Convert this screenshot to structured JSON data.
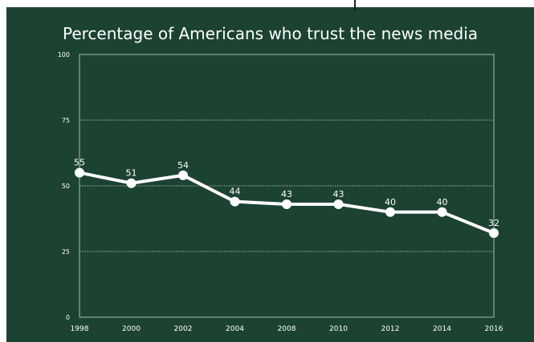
{
  "chart_data": {
    "type": "line",
    "title": "Percentage of Americans who trust the news media",
    "xlabel": "",
    "ylabel": "",
    "categories": [
      "1998",
      "2000",
      "2002",
      "2004",
      "2008",
      "2010",
      "2012",
      "2014",
      "2016"
    ],
    "series": [
      {
        "values": [
          55,
          51,
          54,
          44,
          43,
          43,
          40,
          40,
          32
        ]
      }
    ],
    "data_labels": [
      "55",
      "51",
      "54",
      "44",
      "43",
      "43",
      "40",
      "40",
      "32"
    ],
    "ylim": [
      0,
      100
    ],
    "yticks": [
      "0",
      "25",
      "50",
      "75",
      "100"
    ],
    "grid": true,
    "legend": "none",
    "colors": {
      "background": "#1c4332",
      "line": "#ffffff",
      "grid": "#cfd8d3",
      "text": "#ffffff"
    }
  }
}
